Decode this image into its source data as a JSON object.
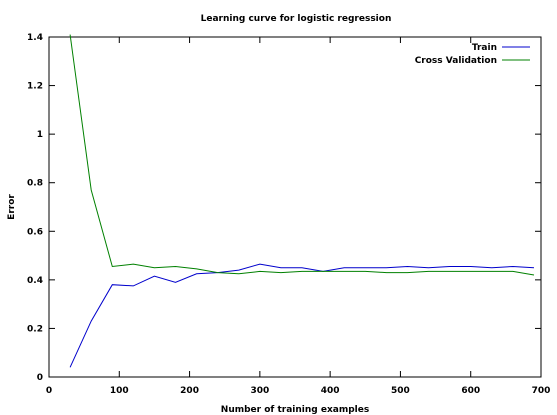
{
  "chart_data": {
    "type": "line",
    "title": "Learning curve for logistic regression",
    "xlabel": "Number of training examples",
    "ylabel": "Error",
    "xlim": [
      0,
      700
    ],
    "ylim": [
      0,
      1.4
    ],
    "xticks": [
      0,
      100,
      200,
      300,
      400,
      500,
      600,
      700
    ],
    "yticks": [
      0,
      0.2,
      0.4,
      0.6,
      0.8,
      1,
      1.2,
      1.4
    ],
    "xtick_labels": [
      "0",
      "100",
      "200",
      "300",
      "400",
      "500",
      "600",
      "700"
    ],
    "ytick_labels": [
      "0",
      "0.2",
      "0.4",
      "0.6",
      "0.8",
      "1",
      "1.2",
      "1.4"
    ],
    "grid": false,
    "legend": "top-right",
    "x": [
      30,
      60,
      90,
      120,
      150,
      180,
      210,
      240,
      270,
      300,
      330,
      360,
      390,
      420,
      450,
      480,
      510,
      540,
      570,
      600,
      630,
      660,
      690
    ],
    "series": [
      {
        "name": "Train",
        "color": "#0000cc",
        "values": [
          0.04,
          0.23,
          0.38,
          0.375,
          0.415,
          0.39,
          0.425,
          0.43,
          0.44,
          0.465,
          0.45,
          0.45,
          0.435,
          0.45,
          0.45,
          0.45,
          0.455,
          0.45,
          0.455,
          0.455,
          0.45,
          0.455,
          0.45
        ]
      },
      {
        "name": "Cross Validation",
        "color": "#008000",
        "values": [
          1.41,
          0.77,
          0.455,
          0.465,
          0.45,
          0.455,
          0.445,
          0.43,
          0.425,
          0.435,
          0.43,
          0.435,
          0.435,
          0.435,
          0.435,
          0.43,
          0.43,
          0.435,
          0.435,
          0.435,
          0.435,
          0.435,
          0.42
        ]
      }
    ]
  }
}
